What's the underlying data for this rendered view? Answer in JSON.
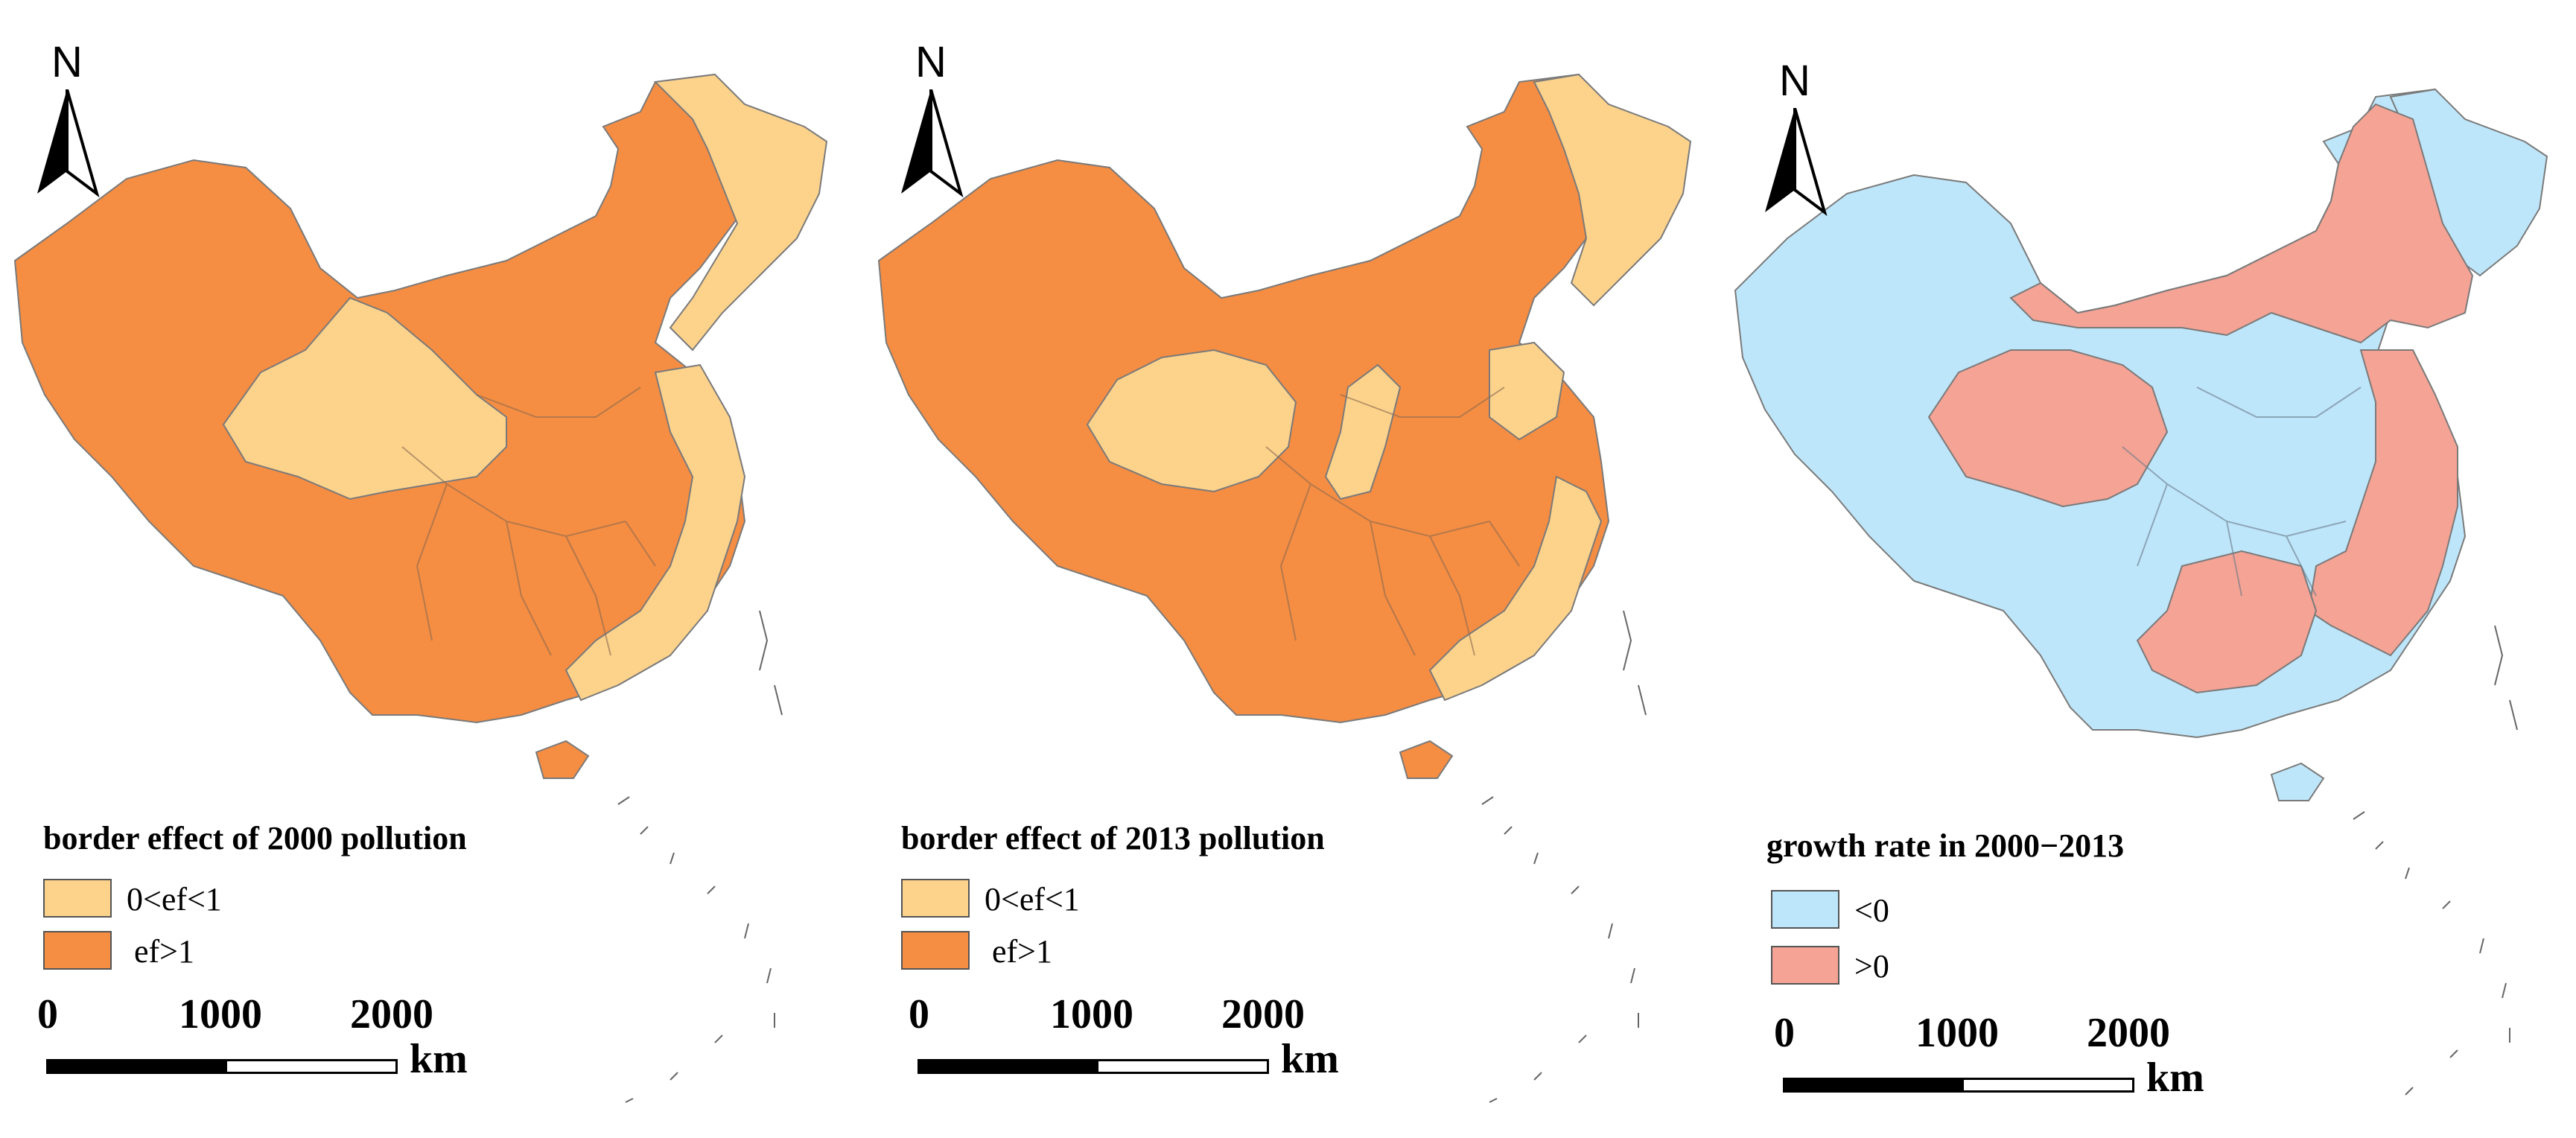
{
  "colors": {
    "light_orange": "#FDD38C",
    "dark_orange": "#F58D43",
    "light_blue": "#BEE6FA",
    "salmon": "#F4A395",
    "border": "#7a7a7a"
  },
  "panels": [
    {
      "north": "N",
      "legend_title": "border effect of 2000 pollution",
      "legend": [
        {
          "label": "0<ef<1",
          "color": "#FDD38C"
        },
        {
          "label": "ef>1",
          "color": "#F58D43"
        }
      ],
      "scale": {
        "ticks": [
          "0",
          "1000",
          "2000"
        ],
        "unit": "km"
      }
    },
    {
      "north": "N",
      "legend_title": "border effect of 2013 pollution",
      "legend": [
        {
          "label": "0<ef<1",
          "color": "#FDD38C"
        },
        {
          "label": "ef>1",
          "color": "#F58D43"
        }
      ],
      "scale": {
        "ticks": [
          "0",
          "1000",
          "2000"
        ],
        "unit": "km"
      }
    },
    {
      "north": "N",
      "legend_title": "growth rate in 2000−2013",
      "legend": [
        {
          "label": "<0",
          "color": "#BEE6FA"
        },
        {
          "label": ">0",
          "color": "#F4A395"
        }
      ],
      "scale": {
        "ticks": [
          "0",
          "1000",
          "2000"
        ],
        "unit": "km"
      }
    }
  ]
}
